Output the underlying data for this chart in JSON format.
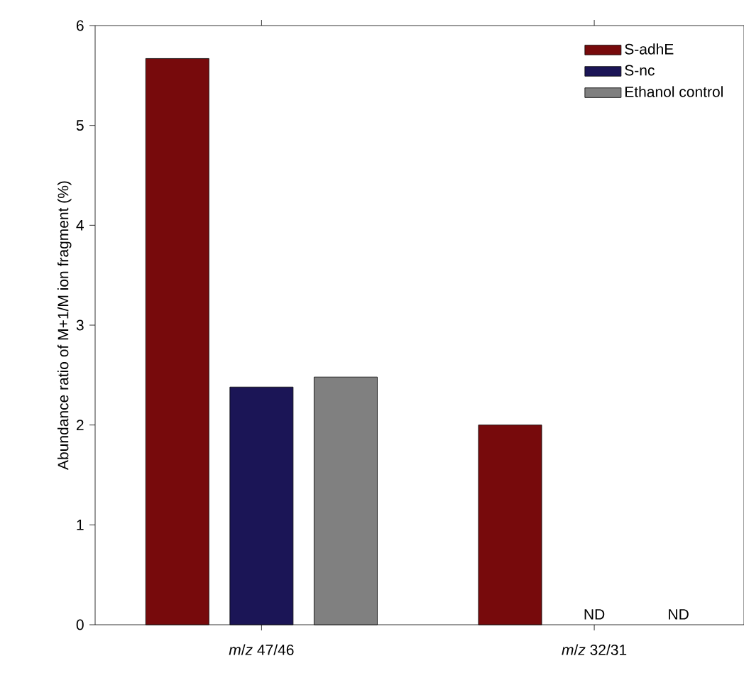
{
  "chart_data": {
    "type": "bar",
    "ylabel": "Abundance ratio of M+1/M ion fragment (%)",
    "categories": [
      "*m*/*z* 47/46",
      "*m*/*z* 32/31"
    ],
    "series": [
      {
        "name": "S-adhE",
        "color": "#770a0c",
        "values": [
          5.67,
          2.0
        ]
      },
      {
        "name": "S-nc",
        "color": "#1b1556",
        "values": [
          2.38,
          null
        ]
      },
      {
        "name": "Ethanol control",
        "color": "#808080",
        "values": [
          2.48,
          null
        ]
      }
    ],
    "ylim": [
      0,
      6
    ],
    "yticks": [
      0,
      1,
      2,
      3,
      4,
      5,
      6
    ],
    "legend": "top right",
    "grid": false,
    "annotations": [
      "ND",
      "ND"
    ]
  }
}
